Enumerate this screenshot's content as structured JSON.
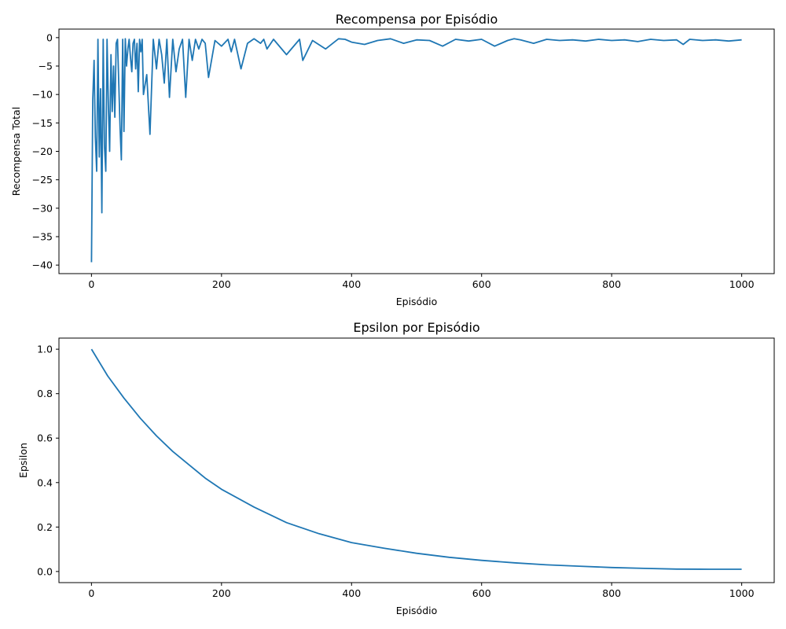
{
  "chart_data": [
    {
      "type": "line",
      "title": "Recompensa por Episódio",
      "xlabel": "Episódio",
      "ylabel": "Recompensa Total",
      "xlim": [
        -50,
        1050
      ],
      "ylim": [
        -41.5,
        1.5
      ],
      "xticks": [
        0,
        200,
        400,
        600,
        800,
        1000
      ],
      "yticks": [
        0,
        -5,
        -10,
        -15,
        -20,
        -25,
        -30,
        -35,
        -40
      ],
      "grid": false,
      "legend": "none",
      "series": [
        {
          "color": "#1f77b4",
          "x": [
            0,
            2,
            4,
            6,
            8,
            10,
            12,
            14,
            16,
            18,
            20,
            22,
            24,
            26,
            28,
            30,
            32,
            34,
            36,
            38,
            40,
            42,
            44,
            46,
            48,
            50,
            52,
            54,
            56,
            58,
            60,
            62,
            64,
            66,
            68,
            70,
            72,
            74,
            76,
            78,
            80,
            85,
            90,
            95,
            100,
            104,
            108,
            112,
            116,
            120,
            125,
            130,
            135,
            140,
            145,
            150,
            155,
            160,
            165,
            170,
            175,
            180,
            190,
            200,
            210,
            215,
            220,
            230,
            240,
            250,
            260,
            265,
            270,
            280,
            300,
            320,
            325,
            340,
            360,
            380,
            390,
            400,
            420,
            440,
            460,
            480,
            500,
            520,
            540,
            560,
            580,
            600,
            620,
            640,
            650,
            660,
            680,
            700,
            720,
            740,
            760,
            780,
            800,
            820,
            840,
            860,
            880,
            900,
            910,
            920,
            940,
            960,
            980,
            1000
          ],
          "y": [
            -39.5,
            -11.0,
            -4.0,
            -17.5,
            -23.5,
            -0.3,
            -21.0,
            -9.0,
            -30.8,
            -0.3,
            -19.0,
            -23.5,
            -0.3,
            -12.0,
            -20.0,
            -3.0,
            -13.0,
            -5.0,
            -14.0,
            -1.0,
            -0.3,
            -8.0,
            -16.0,
            -21.5,
            -0.3,
            -16.5,
            -0.2,
            -5.0,
            -2.0,
            -0.3,
            -3.5,
            -6.0,
            -1.0,
            -0.3,
            -5.5,
            -1.0,
            -9.5,
            -0.3,
            -2.5,
            -0.3,
            -10.0,
            -6.5,
            -17.0,
            -0.3,
            -5.5,
            -0.3,
            -3.0,
            -8.0,
            -0.3,
            -10.5,
            -0.3,
            -6.0,
            -2.0,
            -0.3,
            -10.5,
            -0.3,
            -4.0,
            -0.3,
            -2.0,
            -0.3,
            -1.0,
            -7.0,
            -0.5,
            -1.5,
            -0.3,
            -2.5,
            -0.3,
            -5.5,
            -1.0,
            -0.2,
            -1.0,
            -0.3,
            -2.0,
            -0.3,
            -3.0,
            -0.3,
            -4.0,
            -0.5,
            -2.0,
            -0.2,
            -0.3,
            -0.8,
            -1.2,
            -0.5,
            -0.2,
            -1.0,
            -0.4,
            -0.5,
            -1.5,
            -0.3,
            -0.6,
            -0.3,
            -1.5,
            -0.5,
            -0.2,
            -0.4,
            -1.0,
            -0.3,
            -0.5,
            -0.4,
            -0.6,
            -0.3,
            -0.5,
            -0.4,
            -0.7,
            -0.3,
            -0.5,
            -0.4,
            -1.2,
            -0.3,
            -0.5,
            -0.4,
            -0.6,
            -0.4
          ]
        }
      ]
    },
    {
      "type": "line",
      "title": "Epsilon por Episódio",
      "xlabel": "Episódio",
      "ylabel": "Epsilon",
      "xlim": [
        -50,
        1050
      ],
      "ylim": [
        -0.05,
        1.05
      ],
      "xticks": [
        0,
        200,
        400,
        600,
        800,
        1000
      ],
      "yticks": [
        0.0,
        0.2,
        0.4,
        0.6,
        0.8,
        1.0
      ],
      "grid": false,
      "legend": "none",
      "series": [
        {
          "color": "#1f77b4",
          "x": [
            0,
            25,
            50,
            75,
            100,
            125,
            150,
            175,
            200,
            250,
            300,
            350,
            400,
            450,
            500,
            550,
            600,
            650,
            700,
            750,
            800,
            850,
            900,
            950,
            1000
          ],
          "y": [
            1.0,
            0.88,
            0.78,
            0.69,
            0.61,
            0.54,
            0.48,
            0.42,
            0.37,
            0.29,
            0.22,
            0.17,
            0.13,
            0.105,
            0.082,
            0.064,
            0.05,
            0.039,
            0.03,
            0.024,
            0.018,
            0.014,
            0.011,
            0.01,
            0.01
          ]
        }
      ]
    }
  ]
}
